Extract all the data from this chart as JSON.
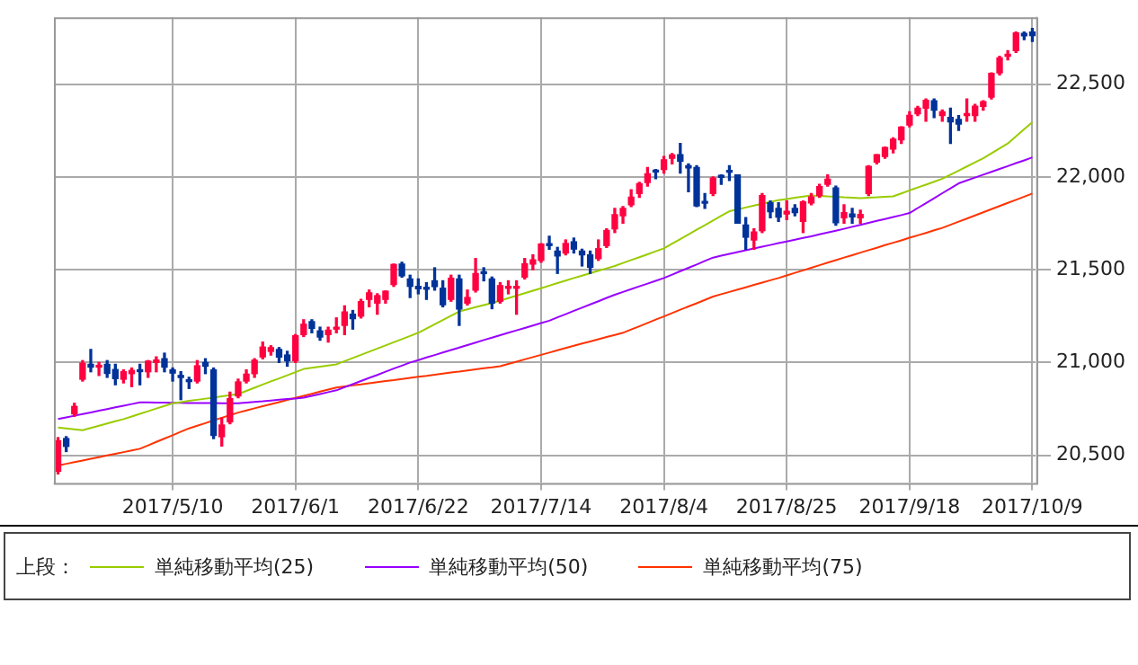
{
  "chart_data": {
    "type": "candlestick",
    "categories": [
      null,
      null,
      null,
      null,
      null,
      null,
      null,
      null,
      null,
      null,
      null,
      null,
      null,
      null,
      "2017/5/10",
      null,
      null,
      null,
      null,
      null,
      null,
      null,
      null,
      null,
      null,
      null,
      null,
      null,
      null,
      "2017/6/1",
      null,
      null,
      null,
      null,
      null,
      null,
      null,
      null,
      null,
      null,
      null,
      null,
      null,
      null,
      "2017/6/22",
      null,
      null,
      null,
      null,
      null,
      null,
      null,
      null,
      null,
      null,
      null,
      null,
      null,
      null,
      "2017/7/14",
      null,
      null,
      null,
      null,
      null,
      null,
      null,
      null,
      null,
      null,
      null,
      null,
      null,
      null,
      "2017/8/4",
      null,
      null,
      null,
      null,
      null,
      null,
      null,
      null,
      null,
      null,
      null,
      null,
      null,
      null,
      "2017/8/25",
      null,
      null,
      null,
      null,
      null,
      null,
      null,
      null,
      null,
      null,
      null,
      null,
      null,
      null,
      "2017/9/18",
      null,
      null,
      null,
      null,
      null,
      null,
      null,
      null,
      null,
      null,
      null,
      null,
      null,
      null,
      "2017/10/9"
    ],
    "ohlc": [
      [
        20414,
        20595,
        20400,
        20578
      ],
      [
        20590,
        20600,
        20520,
        20548
      ],
      [
        20723,
        20780,
        20710,
        20763
      ],
      [
        20910,
        21010,
        20900,
        20996
      ],
      [
        20990,
        21070,
        20950,
        20975
      ],
      [
        20975,
        21000,
        20930,
        20981
      ],
      [
        20990,
        21010,
        20920,
        20941
      ],
      [
        20962,
        20990,
        20880,
        20913
      ],
      [
        20910,
        20960,
        20890,
        20950
      ],
      [
        20940,
        20970,
        20870,
        20957
      ],
      [
        20960,
        20990,
        20880,
        20951
      ],
      [
        20950,
        21010,
        20920,
        21007
      ],
      [
        21000,
        21030,
        20950,
        21013
      ],
      [
        21020,
        21050,
        20950,
        20975
      ],
      [
        20960,
        20970,
        20900,
        20943
      ],
      [
        20930,
        20950,
        20800,
        20919
      ],
      [
        20900,
        20920,
        20860,
        20897
      ],
      [
        20900,
        21010,
        20890,
        20982
      ],
      [
        21000,
        21020,
        20940,
        20980
      ],
      [
        20960,
        20970,
        20590,
        20607
      ],
      [
        20600,
        20700,
        20550,
        20663
      ],
      [
        20680,
        20840,
        20670,
        20805
      ],
      [
        20820,
        20910,
        20810,
        20895
      ],
      [
        20900,
        20960,
        20890,
        20937
      ],
      [
        20940,
        21020,
        20920,
        21012
      ],
      [
        21030,
        21110,
        21020,
        21083
      ],
      [
        21060,
        21090,
        21040,
        21080
      ],
      [
        21070,
        21080,
        21000,
        21029
      ],
      [
        21040,
        21060,
        20980,
        21009
      ],
      [
        21010,
        21150,
        21000,
        21144
      ],
      [
        21150,
        21230,
        21140,
        21206
      ],
      [
        21220,
        21230,
        21160,
        21184
      ],
      [
        21170,
        21190,
        21120,
        21137
      ],
      [
        21150,
        21190,
        21110,
        21174
      ],
      [
        21180,
        21240,
        21160,
        21182
      ],
      [
        21200,
        21305,
        21150,
        21272
      ],
      [
        21260,
        21280,
        21180,
        21236
      ],
      [
        21250,
        21340,
        21240,
        21328
      ],
      [
        21340,
        21390,
        21300,
        21375
      ],
      [
        21320,
        21370,
        21260,
        21360
      ],
      [
        21340,
        21385,
        21320,
        21384
      ],
      [
        21420,
        21530,
        21410,
        21528
      ],
      [
        21530,
        21540,
        21460,
        21467
      ],
      [
        21450,
        21470,
        21350,
        21410
      ],
      [
        21410,
        21450,
        21370,
        21397
      ],
      [
        21400,
        21430,
        21340,
        21395
      ],
      [
        21440,
        21510,
        21390,
        21409
      ],
      [
        21400,
        21440,
        21300,
        21311
      ],
      [
        21340,
        21470,
        21330,
        21454
      ],
      [
        21450,
        21470,
        21200,
        21288
      ],
      [
        21320,
        21390,
        21310,
        21350
      ],
      [
        21390,
        21560,
        21380,
        21479
      ],
      [
        21480,
        21510,
        21440,
        21479
      ],
      [
        21450,
        21460,
        21290,
        21320
      ],
      [
        21330,
        21430,
        21320,
        21414
      ],
      [
        21400,
        21440,
        21370,
        21409
      ],
      [
        21400,
        21440,
        21260,
        21409
      ],
      [
        21460,
        21560,
        21450,
        21532
      ],
      [
        21530,
        21580,
        21500,
        21553
      ],
      [
        21550,
        21640,
        21540,
        21638
      ],
      [
        21640,
        21680,
        21610,
        21630
      ],
      [
        21600,
        21620,
        21480,
        21574
      ],
      [
        21590,
        21660,
        21580,
        21641
      ],
      [
        21650,
        21670,
        21590,
        21611
      ],
      [
        21600,
        21610,
        21520,
        21580
      ],
      [
        21580,
        21600,
        21480,
        21513
      ],
      [
        21560,
        21660,
        21550,
        21613
      ],
      [
        21630,
        21720,
        21620,
        21711
      ],
      [
        21720,
        21830,
        21700,
        21796
      ],
      [
        21790,
        21840,
        21750,
        21830
      ],
      [
        21850,
        21930,
        21840,
        21891
      ],
      [
        21910,
        21970,
        21890,
        21963
      ],
      [
        21970,
        22050,
        21950,
        22016
      ],
      [
        22030,
        22040,
        21990,
        22026
      ],
      [
        22040,
        22110,
        22020,
        22092
      ],
      [
        22100,
        22125,
        22070,
        22118
      ],
      [
        22120,
        22180,
        22020,
        22085
      ],
      [
        22060,
        22070,
        21920,
        22048
      ],
      [
        22050,
        22060,
        21840,
        21844
      ],
      [
        21860,
        21910,
        21830,
        21858
      ],
      [
        21910,
        22000,
        21900,
        21993
      ],
      [
        22000,
        22010,
        21960,
        21998
      ],
      [
        22030,
        22060,
        21980,
        22025
      ],
      [
        22010,
        22010,
        21750,
        21750
      ],
      [
        21740,
        21780,
        21610,
        21675
      ],
      [
        21660,
        21720,
        21610,
        21703
      ],
      [
        21710,
        21910,
        21700,
        21899
      ],
      [
        21860,
        21870,
        21780,
        21812
      ],
      [
        21830,
        21860,
        21760,
        21783
      ],
      [
        21800,
        21870,
        21770,
        21814
      ],
      [
        21830,
        21850,
        21790,
        21808
      ],
      [
        21760,
        21870,
        21700,
        21865
      ],
      [
        21860,
        21910,
        21850,
        21892
      ],
      [
        21900,
        21960,
        21890,
        21948
      ],
      [
        21960,
        22010,
        21950,
        21988
      ],
      [
        21940,
        21950,
        21740,
        21753
      ],
      [
        21780,
        21850,
        21750,
        21807
      ],
      [
        21800,
        21830,
        21750,
        21785
      ],
      [
        21780,
        21820,
        21750,
        21798
      ],
      [
        21910,
        22060,
        21900,
        22057
      ],
      [
        22080,
        22120,
        22070,
        22119
      ],
      [
        22110,
        22160,
        22100,
        22158
      ],
      [
        22150,
        22210,
        22130,
        22203
      ],
      [
        22200,
        22270,
        22180,
        22268
      ],
      [
        22280,
        22350,
        22270,
        22331
      ],
      [
        22340,
        22380,
        22330,
        22370
      ],
      [
        22370,
        22420,
        22300,
        22412
      ],
      [
        22410,
        22420,
        22320,
        22359
      ],
      [
        22330,
        22360,
        22300,
        22350
      ],
      [
        22320,
        22370,
        22180,
        22297
      ],
      [
        22310,
        22330,
        22250,
        22284
      ],
      [
        22330,
        22420,
        22300,
        22341
      ],
      [
        22330,
        22390,
        22300,
        22381
      ],
      [
        22380,
        22410,
        22360,
        22405
      ],
      [
        22430,
        22560,
        22420,
        22557
      ],
      [
        22560,
        22650,
        22550,
        22641
      ],
      [
        22650,
        22680,
        22630,
        22661
      ],
      [
        22680,
        22780,
        22670,
        22775
      ],
      [
        22760,
        22780,
        22740,
        22773
      ],
      [
        22780,
        22800,
        22730,
        22761
      ]
    ],
    "colors": [
      "#ff0040",
      "#003399",
      "#ff0040",
      "#ff0040",
      "#003399",
      "#ff0040",
      "#003399",
      "#003399",
      "#ff0040",
      "#ff0040",
      "#003399",
      "#ff0040",
      "#ff0040",
      "#003399",
      "#003399",
      "#003399",
      "#003399",
      "#ff0040",
      "#003399",
      "#003399",
      "#ff0040",
      "#ff0040",
      "#ff0040",
      "#ff0040",
      "#ff0040",
      "#ff0040",
      "#ff0040",
      "#003399",
      "#003399",
      "#ff0040",
      "#ff0040",
      "#003399",
      "#003399",
      "#ff0040",
      "#ff0040",
      "#ff0040",
      "#003399",
      "#ff0040",
      "#ff0040",
      "#ff0040",
      "#ff0040",
      "#ff0040",
      "#003399",
      "#003399",
      "#003399",
      "#003399",
      "#003399",
      "#003399",
      "#ff0040",
      "#003399",
      "#ff0040",
      "#ff0040",
      "#003399",
      "#003399",
      "#ff0040",
      "#ff0040",
      "#ff0040",
      "#ff0040",
      "#ff0040",
      "#ff0040",
      "#003399",
      "#003399",
      "#ff0040",
      "#003399",
      "#003399",
      "#003399",
      "#ff0040",
      "#ff0040",
      "#ff0040",
      "#ff0040",
      "#ff0040",
      "#ff0040",
      "#ff0040",
      "#003399",
      "#ff0040",
      "#ff0040",
      "#003399",
      "#003399",
      "#003399",
      "#003399",
      "#ff0040",
      "#003399",
      "#003399",
      "#003399",
      "#003399",
      "#ff0040",
      "#ff0040",
      "#003399",
      "#003399",
      "#ff0040",
      "#003399",
      "#ff0040",
      "#ff0040",
      "#ff0040",
      "#ff0040",
      "#003399",
      "#ff0040",
      "#003399",
      "#ff0040",
      "#ff0040",
      "#ff0040",
      "#ff0040",
      "#ff0040",
      "#ff0040",
      "#ff0040",
      "#ff0040",
      "#ff0040",
      "#003399",
      "#ff0040",
      "#003399",
      "#003399",
      "#ff0040",
      "#ff0040",
      "#ff0040",
      "#ff0040",
      "#ff0040",
      "#ff0040",
      "#ff0040",
      "#003399",
      "#003399"
    ],
    "series": [
      {
        "type": "line",
        "name": "単純移動平均(25)",
        "color": "#99cc00",
        "values": [
          20650,
          20645,
          20640,
          20635,
          20647,
          20659,
          20671,
          20683,
          20695,
          20709,
          20723,
          20737,
          20752,
          20766,
          20780,
          20786,
          20793,
          20799,
          20805,
          20811,
          20818,
          20824,
          20830,
          20847,
          20864,
          20881,
          20898,
          20914,
          20931,
          20948,
          20965,
          20971,
          20978,
          20984,
          20990,
          21007,
          21024,
          21041,
          21058,
          21075,
          21092,
          21109,
          21126,
          21143,
          21160,
          21183,
          21206,
          21229,
          21252,
          21275,
          21286,
          21298,
          21309,
          21320,
          21333,
          21347,
          21360,
          21373,
          21387,
          21400,
          21414,
          21428,
          21441,
          21455,
          21468,
          21481,
          21494,
          21507,
          21520,
          21536,
          21552,
          21567,
          21583,
          21599,
          21615,
          21640,
          21665,
          21690,
          21715,
          21740,
          21765,
          21790,
          21815,
          21825,
          21835,
          21845,
          21855,
          21865,
          21875,
          21881,
          21888,
          21894,
          21900,
          21898,
          21895,
          21893,
          21890,
          21888,
          21885,
          21888,
          21890,
          21893,
          21895,
          21911,
          21927,
          21943,
          21958,
          21974,
          21990,
          22012,
          22034,
          22056,
          22078,
          22100,
          22127,
          22153,
          22180,
          22218,
          22257,
          22295
        ]
      },
      {
        "type": "line",
        "name": "単純移動平均(50)",
        "color": "#9900ff",
        "values": [
          20695,
          20704,
          20713,
          20722,
          20731,
          20740,
          20749,
          20758,
          20767,
          20776,
          20785,
          20785,
          20784,
          20784,
          20783,
          20783,
          20782,
          20782,
          20781,
          20781,
          20780,
          20780,
          20780,
          20784,
          20788,
          20791,
          20795,
          20799,
          20803,
          20806,
          20810,
          20820,
          20830,
          20840,
          20850,
          20867,
          20883,
          20900,
          20917,
          20933,
          20950,
          20967,
          20983,
          21000,
          21013,
          21027,
          21040,
          21054,
          21067,
          21080,
          21094,
          21107,
          21121,
          21134,
          21147,
          21160,
          21173,
          21186,
          21199,
          21212,
          21225,
          21243,
          21260,
          21278,
          21295,
          21313,
          21330,
          21348,
          21365,
          21380,
          21395,
          21410,
          21425,
          21440,
          21455,
          21473,
          21492,
          21510,
          21528,
          21547,
          21565,
          21575,
          21585,
          21595,
          21605,
          21614,
          21624,
          21633,
          21643,
          21652,
          21661,
          21671,
          21680,
          21690,
          21700,
          21710,
          21720,
          21731,
          21741,
          21752,
          21763,
          21773,
          21784,
          21794,
          21805,
          21832,
          21858,
          21885,
          21912,
          21938,
          21965,
          21981,
          21996,
          22012,
          22027,
          22043,
          22058,
          22074,
          22089,
          22105
        ]
      },
      {
        "type": "line",
        "name": "単純移動平均(75)",
        "color": "#ff3300",
        "values": [
          20445,
          20454,
          20463,
          20472,
          20481,
          20490,
          20499,
          20508,
          20517,
          20526,
          20535,
          20553,
          20572,
          20590,
          20608,
          20627,
          20645,
          20659,
          20673,
          20688,
          20702,
          20716,
          20730,
          20741,
          20753,
          20764,
          20775,
          20786,
          20798,
          20809,
          20820,
          20831,
          20843,
          20854,
          20865,
          20871,
          20877,
          20882,
          20888,
          20894,
          20900,
          20905,
          20911,
          20917,
          20923,
          20928,
          20934,
          20940,
          20946,
          20951,
          20957,
          20963,
          20969,
          20974,
          20980,
          20992,
          21004,
          21017,
          21029,
          21041,
          21053,
          21066,
          21078,
          21090,
          21102,
          21113,
          21125,
          21137,
          21148,
          21160,
          21178,
          21195,
          21213,
          21231,
          21248,
          21266,
          21284,
          21302,
          21319,
          21337,
          21355,
          21368,
          21380,
          21393,
          21405,
          21418,
          21430,
          21443,
          21455,
          21469,
          21483,
          21496,
          21510,
          21524,
          21538,
          21551,
          21565,
          21578,
          21592,
          21605,
          21618,
          21632,
          21645,
          21658,
          21672,
          21685,
          21698,
          21712,
          21725,
          21742,
          21759,
          21775,
          21792,
          21809,
          21826,
          21843,
          21860,
          21876,
          21893,
          21910
        ]
      }
    ],
    "ylim": [
      20350,
      22860
    ],
    "yticks": [
      {
        "value": 20500,
        "label": "20,500"
      },
      {
        "value": 21000,
        "label": "21,000"
      },
      {
        "value": 21500,
        "label": "21,500"
      },
      {
        "value": 22000,
        "label": "22,000"
      },
      {
        "value": 22500,
        "label": "22,500"
      }
    ],
    "grid": true,
    "legend": "bottom",
    "legend_title": "上段："
  }
}
